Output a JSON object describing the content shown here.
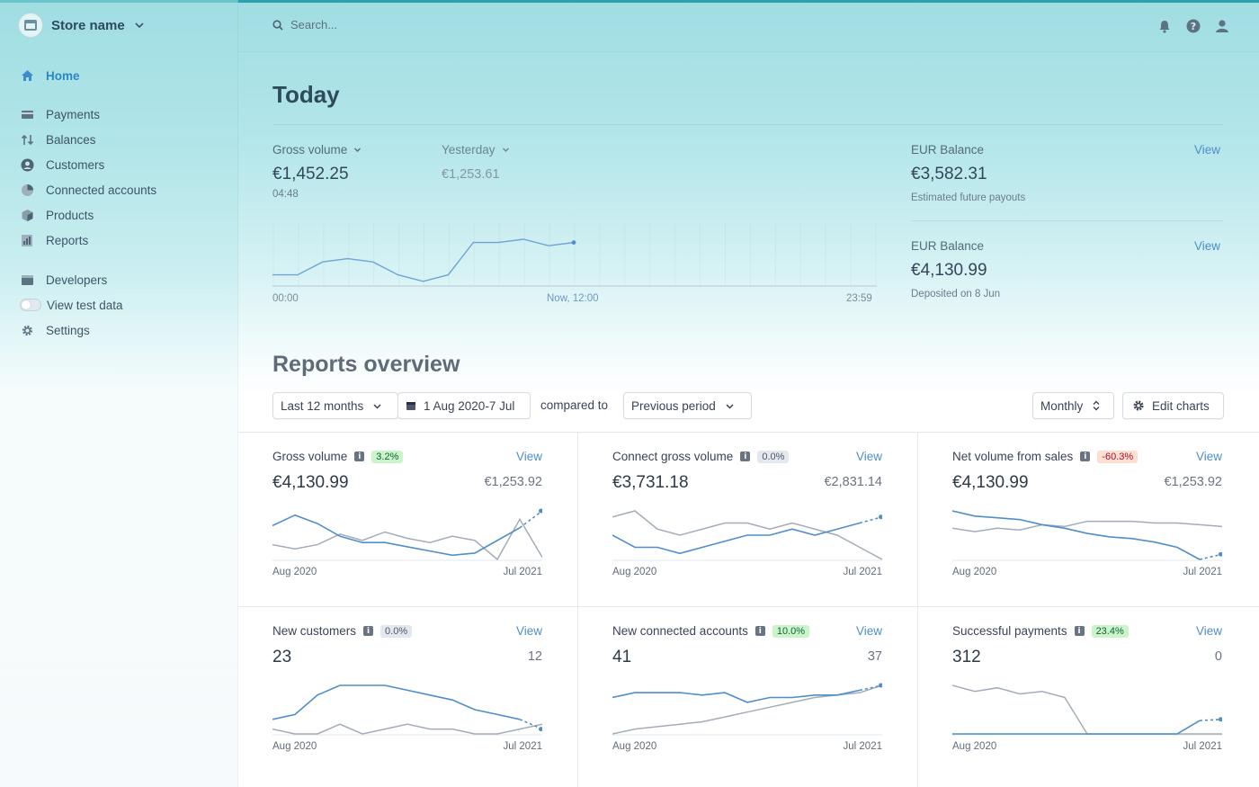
{
  "store": {
    "name": "Store name"
  },
  "search": {
    "placeholder": "Search..."
  },
  "sidebar": {
    "items": [
      {
        "label": "Home",
        "icon": "home-icon",
        "active": true
      },
      {
        "label": "Payments",
        "icon": "payments-icon"
      },
      {
        "label": "Balances",
        "icon": "balances-icon"
      },
      {
        "label": "Customers",
        "icon": "customers-icon"
      },
      {
        "label": "Connected accounts",
        "icon": "connected-accounts-icon"
      },
      {
        "label": "Products",
        "icon": "products-icon"
      },
      {
        "label": "Reports",
        "icon": "reports-icon"
      },
      {
        "label": "Developers",
        "icon": "developers-icon"
      },
      {
        "label": "View test data",
        "icon": "toggle"
      },
      {
        "label": "Settings",
        "icon": "gear-icon"
      }
    ]
  },
  "today": {
    "title": "Today",
    "gross_label": "Gross volume",
    "gross_value": "€1,452.25",
    "gross_time": "04:48",
    "yesterday_label": "Yesterday",
    "yesterday_value": "€1,253.61",
    "axis_start": "00:00",
    "axis_now": "Now, 12:00",
    "axis_end": "23:59",
    "series": [
      16,
      16,
      12,
      11,
      12,
      16,
      18,
      16,
      6,
      6,
      5,
      7,
      6
    ]
  },
  "balances": [
    {
      "label": "EUR Balance",
      "value": "€3,582.31",
      "note": "Estimated future payouts",
      "view": "View"
    },
    {
      "label": "EUR Balance",
      "value": "€4,130.99",
      "note": "Deposited on 8 Jun",
      "view": "View"
    }
  ],
  "reports": {
    "title": "Reports overview",
    "range": "Last 12 months",
    "dates": "1 Aug 2020-7 Jul",
    "compared_to": "compared to",
    "compare_period": "Previous period",
    "interval": "Monthly",
    "edit_charts": "Edit charts"
  },
  "chart_data": [
    {
      "type": "line",
      "title": "Gross volume",
      "badge": "3.2%",
      "badge_type": "pos",
      "value": "€4,130.99",
      "compare": "€1,253.92",
      "view": "View",
      "x_start": "Aug 2020",
      "x_end": "Jul 2021",
      "current": [
        19,
        24,
        20,
        14,
        11,
        11,
        9,
        7,
        5,
        6,
        12,
        18,
        26
      ],
      "previous": [
        10,
        8,
        10,
        15,
        12,
        16,
        13,
        11,
        14,
        12,
        3,
        22,
        4
      ]
    },
    {
      "type": "line",
      "title": "Connect gross volume",
      "badge": "0.0%",
      "badge_type": "neu",
      "value": "€3,731.18",
      "compare": "€2,831.14",
      "view": "View",
      "x_start": "Aug 2020",
      "x_end": "Jul 2021",
      "current": [
        20,
        18,
        18,
        17,
        18,
        19,
        20,
        20,
        21,
        20,
        21,
        22,
        23
      ],
      "previous": [
        23,
        24,
        21,
        20,
        21,
        22,
        22,
        21,
        22,
        21,
        20,
        18,
        16
      ]
    },
    {
      "type": "line",
      "title": "Net volume from sales",
      "badge": "-60.3%",
      "badge_type": "neg2",
      "value": "€4,130.99",
      "compare": "€1,253.92",
      "view": "View",
      "x_start": "Aug 2020",
      "x_end": "Jul 2021",
      "current": [
        34,
        31,
        30,
        29,
        26,
        24,
        21,
        19,
        18,
        16,
        13,
        6,
        9
      ],
      "previous": [
        24,
        22,
        24,
        23,
        26,
        25,
        28,
        28,
        28,
        27,
        27,
        26,
        25
      ]
    },
    {
      "type": "line",
      "title": "New customers",
      "badge": "0.0%",
      "badge_type": "neu",
      "value": "23",
      "compare": "12",
      "view": "View",
      "x_start": "Aug 2020",
      "x_end": "Jul 2021",
      "current": [
        5,
        6,
        10,
        12,
        12,
        12,
        11,
        10,
        9,
        7,
        6,
        5,
        3
      ],
      "previous": [
        3,
        2,
        2,
        4,
        2,
        3,
        4,
        3,
        3,
        2,
        2,
        3,
        4
      ]
    },
    {
      "type": "line",
      "title": "New connected accounts",
      "badge": "10.0%",
      "badge_type": "pos",
      "value": "41",
      "compare": "37",
      "view": "View",
      "x_start": "Aug 2020",
      "x_end": "Jul 2021",
      "current": [
        25,
        27,
        27,
        27,
        26,
        27,
        23,
        25,
        25,
        26,
        26,
        28,
        30
      ],
      "previous": [
        10,
        12,
        13,
        14,
        15,
        17,
        19,
        21,
        23,
        25,
        26,
        27,
        30
      ]
    },
    {
      "type": "line",
      "title": "Successful payments",
      "badge": "23.4%",
      "badge_type": "pos",
      "value": "312",
      "compare": "0",
      "view": "View",
      "x_start": "Aug 2020",
      "x_end": "Jul 2021",
      "current": [
        0,
        0,
        0,
        0,
        0,
        0,
        0,
        0,
        0,
        0,
        0,
        11,
        12
      ],
      "previous": [
        40,
        35,
        38,
        33,
        35,
        30,
        0,
        0,
        0,
        0,
        0,
        0,
        0
      ]
    }
  ]
}
